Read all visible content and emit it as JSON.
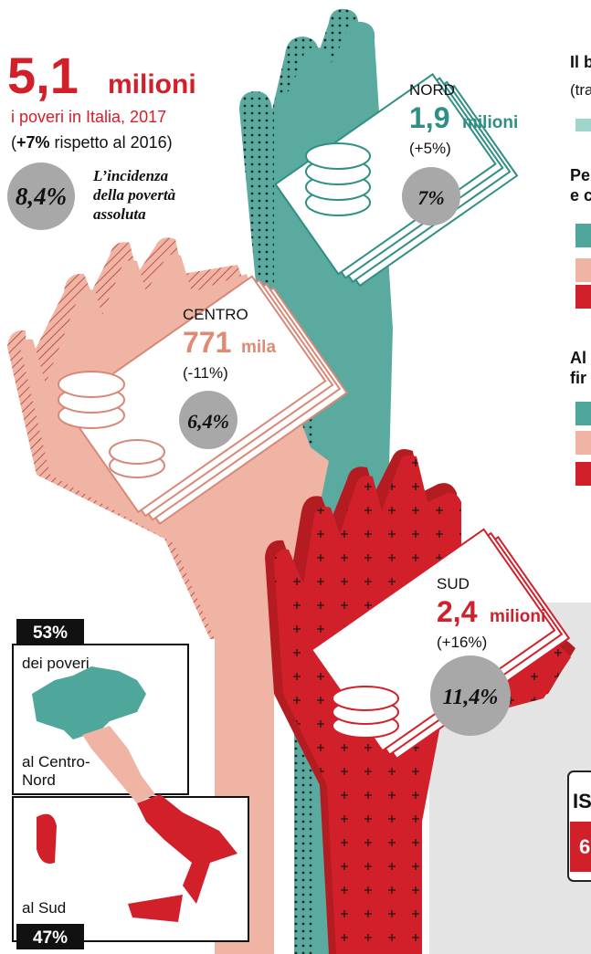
{
  "header": {
    "total_number": "5,1",
    "total_unit": "milioni",
    "subtitle": "i poveri in Italia, 2017",
    "change_open": "(",
    "change_value": "+7%",
    "change_text": " rispetto al 2016)",
    "incidence_value": "8,4%",
    "incidence_label": [
      "L’incidenza",
      "della povertà",
      "assoluta"
    ]
  },
  "regions": [
    {
      "name": "NORD",
      "number": "1,9",
      "unit": "milioni",
      "change": "(+5%)",
      "incidence": "7%"
    },
    {
      "name": "CENTRO",
      "number": "771",
      "unit": "mila",
      "change": "(-11%)",
      "incidence": "6,4%"
    },
    {
      "name": "SUD",
      "number": "2,4",
      "unit": "milioni",
      "change": "(+16%)",
      "incidence": "11,4%"
    }
  ],
  "map": {
    "north_share": "53%",
    "north_label": [
      "dei poveri",
      "al Centro-",
      "Nord"
    ],
    "south_label": "al Sud",
    "south_share": "47%"
  },
  "sidebar": {
    "fragments": [
      "Il b",
      "(tra",
      "Pe",
      "e c",
      "Al",
      "fir",
      "IS",
      "6"
    ]
  }
}
